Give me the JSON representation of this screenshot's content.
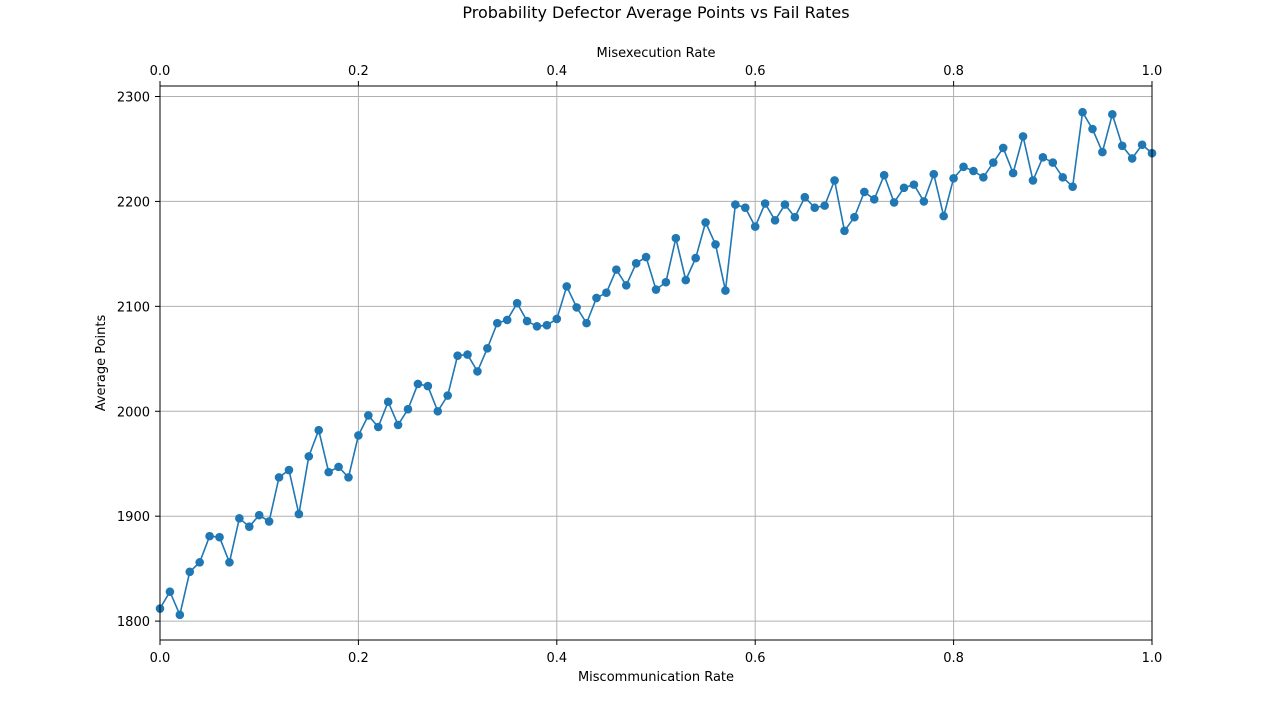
{
  "chart_data": {
    "type": "line",
    "title": "Probability Defector Average Points vs Fail Rates",
    "xlabel": "Miscommunication Rate",
    "x2label": "Misexecution Rate",
    "ylabel": "Average Points",
    "xlim": [
      0,
      1
    ],
    "ylim": [
      1782,
      2310
    ],
    "x_ticks": [
      "0.0",
      "0.2",
      "0.4",
      "0.6",
      "0.8",
      "1.0"
    ],
    "x2_ticks": [
      "0.0",
      "0.2",
      "0.4",
      "0.6",
      "0.8",
      "1.0"
    ],
    "y_ticks": [
      "1800",
      "1900",
      "2000",
      "2100",
      "2200",
      "2300"
    ],
    "grid": true,
    "line_color": "#1f77b4",
    "series": [
      {
        "x": [
          0.0,
          0.01,
          0.02,
          0.03,
          0.04,
          0.05,
          0.06,
          0.07,
          0.08,
          0.09,
          0.1,
          0.11,
          0.12,
          0.13,
          0.14,
          0.15,
          0.16,
          0.17,
          0.18,
          0.19,
          0.2,
          0.21,
          0.22,
          0.23,
          0.24,
          0.25,
          0.26,
          0.27,
          0.28,
          0.29,
          0.3,
          0.31,
          0.32,
          0.33,
          0.34,
          0.35,
          0.36,
          0.37,
          0.38,
          0.39,
          0.4,
          0.41,
          0.42,
          0.43,
          0.44,
          0.45,
          0.46,
          0.47,
          0.48,
          0.49,
          0.5,
          0.51,
          0.52,
          0.53,
          0.54,
          0.55,
          0.56,
          0.57,
          0.58,
          0.59,
          0.6,
          0.61,
          0.62,
          0.63,
          0.64,
          0.65,
          0.66,
          0.67,
          0.68,
          0.69,
          0.7,
          0.71,
          0.72,
          0.73,
          0.74,
          0.75,
          0.76,
          0.77,
          0.78,
          0.79,
          0.8,
          0.81,
          0.82,
          0.83,
          0.84,
          0.85,
          0.86,
          0.87,
          0.88,
          0.89,
          0.9,
          0.91,
          0.92,
          0.93,
          0.94,
          0.95,
          0.96,
          0.97,
          0.98,
          0.99,
          1.0
        ],
        "y": [
          1812,
          1828,
          1806,
          1847,
          1856,
          1881,
          1880,
          1856,
          1898,
          1890,
          1901,
          1895,
          1937,
          1944,
          1902,
          1957,
          1982,
          1942,
          1947,
          1937,
          1977,
          1996,
          1985,
          2009,
          1987,
          2002,
          2026,
          2024,
          2000,
          2015,
          2053,
          2054,
          2038,
          2060,
          2084,
          2087,
          2103,
          2086,
          2081,
          2082,
          2088,
          2119,
          2099,
          2084,
          2108,
          2113,
          2135,
          2120,
          2141,
          2147,
          2116,
          2123,
          2165,
          2125,
          2146,
          2180,
          2159,
          2115,
          2197,
          2194,
          2176,
          2198,
          2182,
          2197,
          2185,
          2204,
          2194,
          2196,
          2220,
          2172,
          2185,
          2209,
          2202,
          2225,
          2199,
          2213,
          2216,
          2200,
          2226,
          2186,
          2222,
          2233,
          2229,
          2223,
          2237,
          2251,
          2227,
          2262,
          2220,
          2242,
          2237,
          2223,
          2214,
          2285,
          2269,
          2247,
          2283,
          2253,
          2241,
          2254,
          2246
        ]
      }
    ]
  }
}
